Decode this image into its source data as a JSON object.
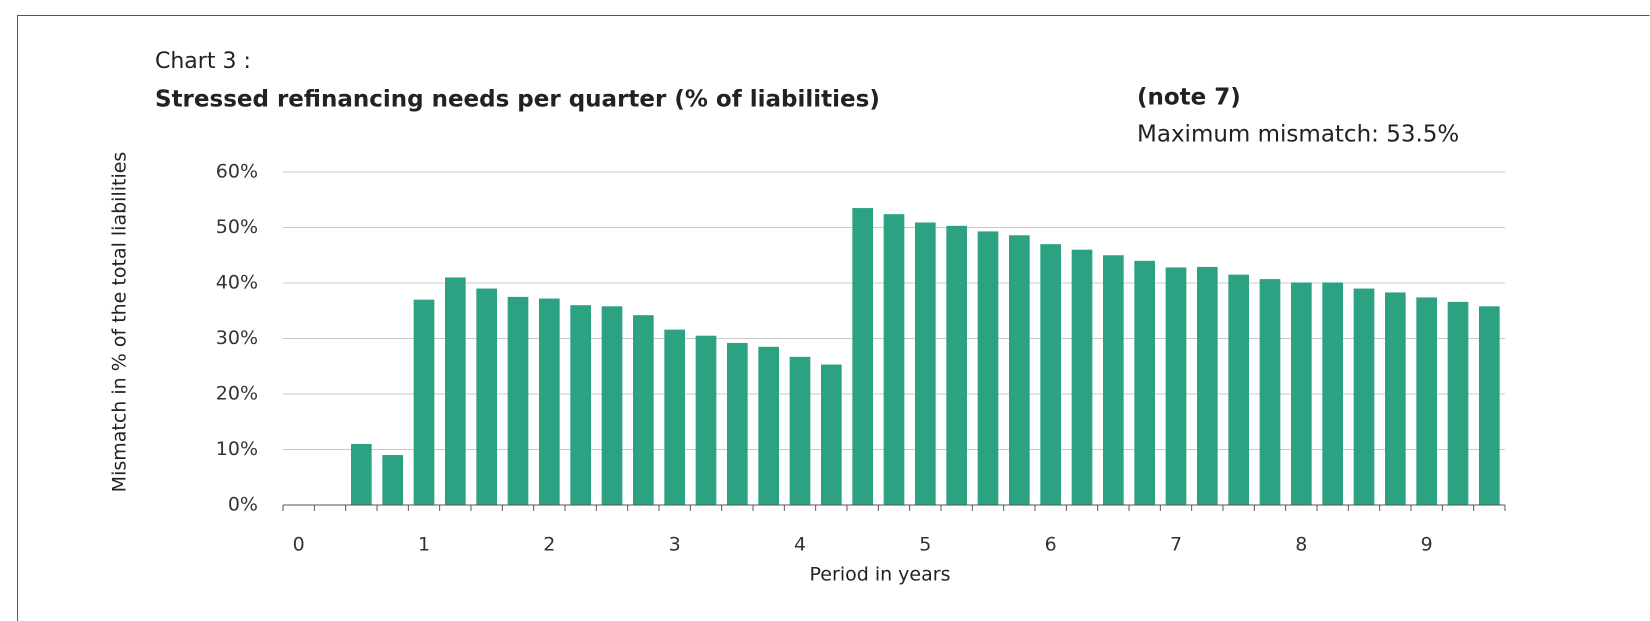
{
  "chart_data": {
    "type": "bar",
    "chart_number": "Chart 3 :",
    "title": "Stressed refinancing needs per quarter  (% of liabilities)",
    "note": "(note 7)",
    "annotation": "Maximum mismatch: 53.5%",
    "y_label": "Mismatch in % of the total liabilities",
    "x_label": "Period in years",
    "categories": [
      "0",
      null,
      null,
      null,
      "1",
      null,
      null,
      null,
      "2",
      null,
      null,
      null,
      "3",
      null,
      null,
      null,
      "4",
      null,
      null,
      null,
      "5",
      null,
      null,
      null,
      "6",
      null,
      null,
      null,
      "7",
      null,
      null,
      null,
      "8",
      null,
      null,
      null,
      "9",
      null,
      null
    ],
    "values": [
      0,
      0,
      11,
      9,
      37,
      41,
      39,
      37.5,
      37.2,
      36,
      35.8,
      34.2,
      31.6,
      30.5,
      29.2,
      28.5,
      26.7,
      25.3,
      53.5,
      52.4,
      50.9,
      50.3,
      49.3,
      48.6,
      47,
      46,
      45,
      44,
      42.8,
      42.9,
      41.5,
      40.7,
      40.1,
      40.1,
      39,
      38.3,
      37.4,
      36.6,
      35.8
    ],
    "color": "#2ca283",
    "ylim": [
      0,
      60
    ],
    "yticks": [
      {
        "value": 0,
        "label": "0%"
      },
      {
        "value": 10,
        "label": "10%"
      },
      {
        "value": 20,
        "label": "20%"
      },
      {
        "value": 30,
        "label": "30%"
      },
      {
        "value": 40,
        "label": "40%"
      },
      {
        "value": 50,
        "label": "50%"
      },
      {
        "value": 60,
        "label": "60%"
      }
    ],
    "grid": true
  }
}
